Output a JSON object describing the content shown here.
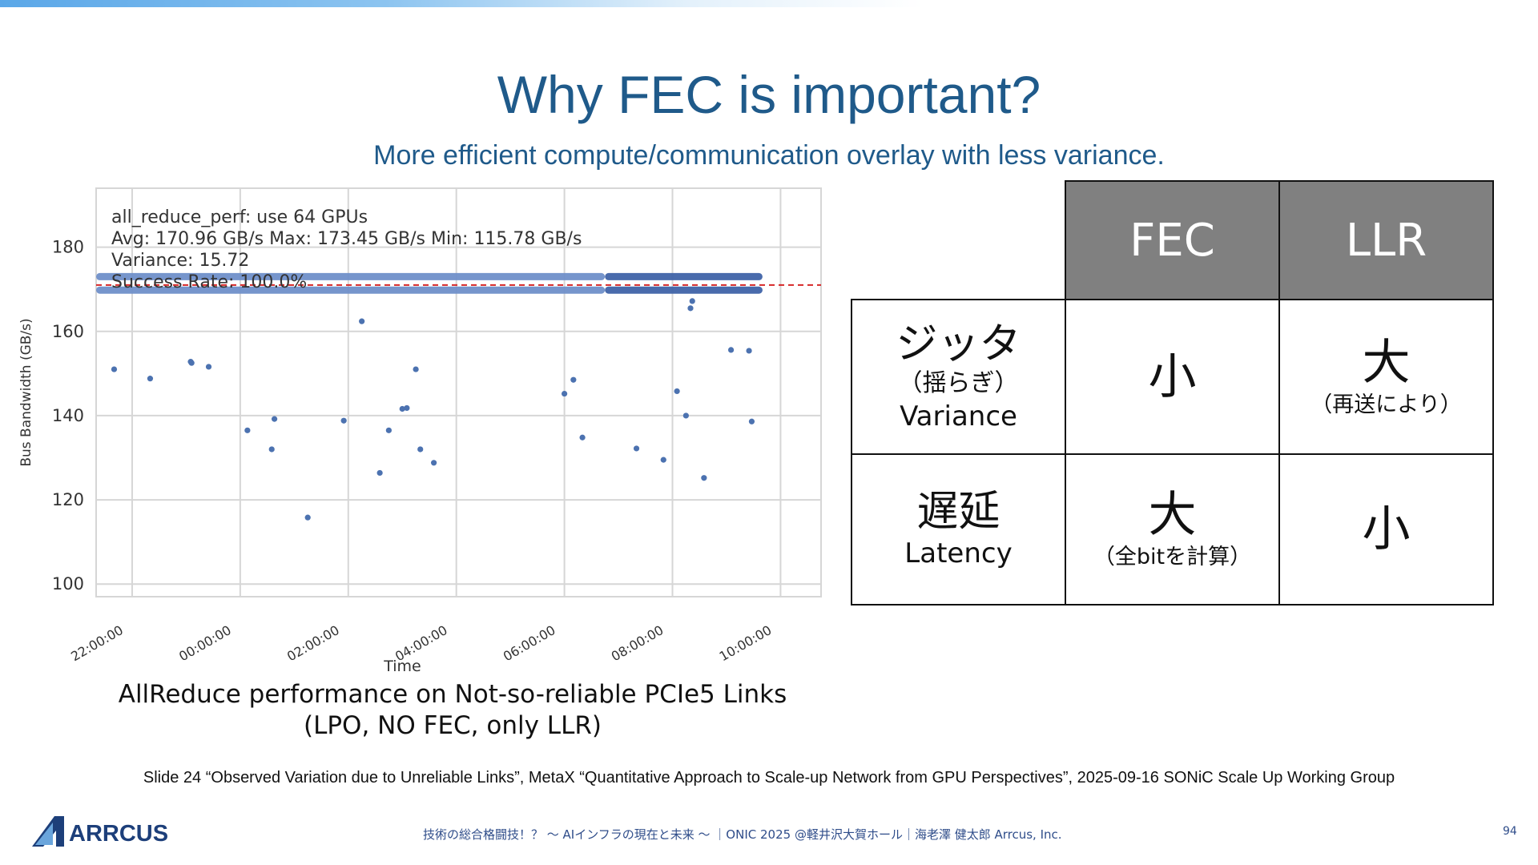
{
  "slide": {
    "title": "Why FEC is important?",
    "subtitle": "More efficient compute/communication overlay with less variance.",
    "caption_line1": "AllReduce performance on Not-so-reliable PCIe5 Links",
    "caption_line2": "(LPO, NO FEC, only LLR)",
    "source": "Slide 24 “Observed Variation due to Unreliable Links”, MetaX “Quantitative Approach to Scale-up Network from GPU Perspectives”, 2025-09-16 SONiC Scale Up Working Group",
    "footer": "技術の総合格闘技！？ 〜 AIインフラの現在と未来 〜 ｜ONIC 2025 @軽井沢大賀ホール｜海老澤 健太郎 Arrcus, Inc.",
    "page_number": "94",
    "logo_text": "ARRCUS"
  },
  "table": {
    "headers": [
      "FEC",
      "LLR"
    ],
    "rows": [
      {
        "label_jp": "ジッタ",
        "label_jp_sub": "（揺らぎ）",
        "label_en": "Variance",
        "fec": "小",
        "fec_note": "",
        "llr": "大",
        "llr_note": "（再送により）"
      },
      {
        "label_jp": "遅延",
        "label_jp_sub": "",
        "label_en": "Latency",
        "fec": "大",
        "fec_note": "（全bitを計算）",
        "llr": "小",
        "llr_note": ""
      }
    ]
  },
  "chart_data": {
    "type": "scatter",
    "xlabel": "Time",
    "ylabel": "Bus Bandwidth (GB/s)",
    "ylim": [
      97,
      194
    ],
    "xlim": [
      "21:20",
      "10:45"
    ],
    "yticks": [
      100,
      120,
      140,
      160,
      180
    ],
    "xticks": [
      "22:00:00",
      "00:00:00",
      "02:00:00",
      "04:00:00",
      "06:00:00",
      "08:00:00",
      "10:00:00"
    ],
    "grid": true,
    "annotations": [
      "all_reduce_perf: use 64 GPUs",
      "Avg: 170.96 GB/s  Max: 173.45 GB/s  Min: 115.78 GB/s",
      "Variance: 15.72",
      "Success Rate: 100.0%"
    ],
    "reference_line": {
      "y": 171,
      "style": "dashed",
      "color": "#d62728"
    },
    "dense_bands": [
      {
        "x_start": "21:20",
        "x_end": "06:45",
        "y_values": [
          173,
          169.8
        ],
        "color": "#6f8fc9"
      },
      {
        "x_start": "06:45",
        "x_end": "09:40",
        "y_values": [
          173,
          169.8
        ],
        "color": "#3f63a8"
      }
    ],
    "outliers": [
      {
        "x": "21:40",
        "y": 151
      },
      {
        "x": "22:20",
        "y": 148.8
      },
      {
        "x": "23:05",
        "y": 152.8
      },
      {
        "x": "23:06",
        "y": 152.5
      },
      {
        "x": "23:25",
        "y": 151.6
      },
      {
        "x": "00:08",
        "y": 136.5
      },
      {
        "x": "00:35",
        "y": 132
      },
      {
        "x": "00:38",
        "y": 139.2
      },
      {
        "x": "01:15",
        "y": 115.8
      },
      {
        "x": "01:55",
        "y": 138.8
      },
      {
        "x": "02:15",
        "y": 162.4
      },
      {
        "x": "02:35",
        "y": 126.4
      },
      {
        "x": "02:45",
        "y": 136.5
      },
      {
        "x": "03:00",
        "y": 141.6
      },
      {
        "x": "03:05",
        "y": 141.8
      },
      {
        "x": "03:15",
        "y": 151
      },
      {
        "x": "03:20",
        "y": 132
      },
      {
        "x": "03:35",
        "y": 128.8
      },
      {
        "x": "06:00",
        "y": 145.2
      },
      {
        "x": "06:10",
        "y": 148.5
      },
      {
        "x": "06:20",
        "y": 134.8
      },
      {
        "x": "07:20",
        "y": 132.2
      },
      {
        "x": "07:50",
        "y": 129.5
      },
      {
        "x": "08:05",
        "y": 145.8
      },
      {
        "x": "08:15",
        "y": 140
      },
      {
        "x": "08:20",
        "y": 165.5
      },
      {
        "x": "08:22",
        "y": 167.2
      },
      {
        "x": "08:35",
        "y": 125.2
      },
      {
        "x": "09:05",
        "y": 155.6
      },
      {
        "x": "09:25",
        "y": 155.4
      },
      {
        "x": "09:28",
        "y": 138.6
      }
    ],
    "colors": {
      "points": "#4c72b0",
      "grid": "#d6d6d6",
      "axis": "#333333"
    }
  }
}
